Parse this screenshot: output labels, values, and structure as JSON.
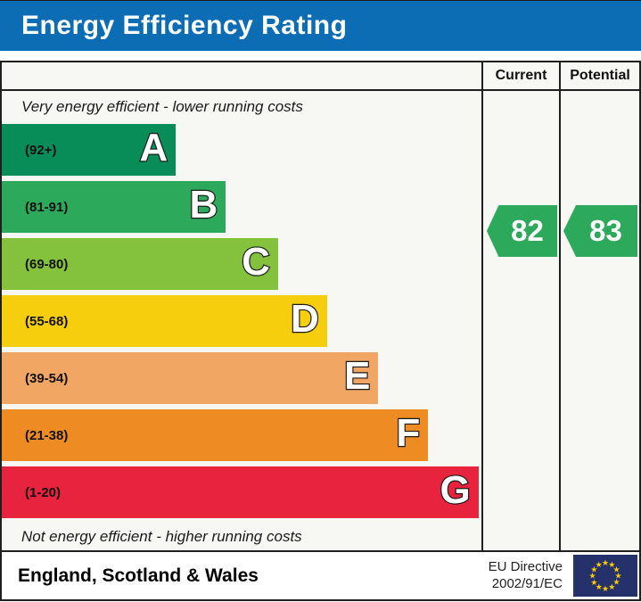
{
  "title": {
    "text": "Energy Efficiency Rating",
    "bg_color": "#0c6db5"
  },
  "table": {
    "columns": {
      "current": "Current",
      "potential": "Potential"
    },
    "top_note": "Very energy efficient - lower running costs",
    "bottom_note": "Not energy efficient - higher running costs",
    "bands": [
      {
        "letter": "A",
        "range": "(92+)",
        "color": "#088c58",
        "width_pct": 36.3
      },
      {
        "letter": "B",
        "range": "(81-91)",
        "color": "#2da95c",
        "width_pct": 46.7
      },
      {
        "letter": "C",
        "range": "(69-80)",
        "color": "#84c13d",
        "width_pct": 57.6
      },
      {
        "letter": "D",
        "range": "(55-68)",
        "color": "#f7ce0d",
        "width_pct": 67.8
      },
      {
        "letter": "E",
        "range": "(39-54)",
        "color": "#f1a664",
        "width_pct": 78.5
      },
      {
        "letter": "F",
        "range": "(21-38)",
        "color": "#ee8b23",
        "width_pct": 88.9
      },
      {
        "letter": "G",
        "range": "(1-20)",
        "color": "#e8233d",
        "width_pct": 99.4
      }
    ],
    "current": {
      "value": "82",
      "color": "#2da95c"
    },
    "potential": {
      "value": "83",
      "color": "#2da95c"
    }
  },
  "footer": {
    "region": "England, Scotland & Wales",
    "directive_line1": "EU Directive",
    "directive_line2": "2002/91/EC",
    "flag_color": "#25316b",
    "star_color": "#ffcc00"
  },
  "chart_data": {
    "type": "bar",
    "title": "Energy Efficiency Rating",
    "categories": [
      "A",
      "B",
      "C",
      "D",
      "E",
      "F",
      "G"
    ],
    "band_score_ranges": [
      "92+",
      "81-91",
      "69-80",
      "55-68",
      "39-54",
      "21-38",
      "1-20"
    ],
    "bar_lengths_pct": [
      36.3,
      46.7,
      57.6,
      67.8,
      78.5,
      88.9,
      99.4
    ],
    "band_colors": [
      "#088c58",
      "#2da95c",
      "#84c13d",
      "#f7ce0d",
      "#f1a664",
      "#ee8b23",
      "#e8233d"
    ],
    "series": [
      {
        "name": "Current",
        "values": [
          82
        ],
        "band": "B"
      },
      {
        "name": "Potential",
        "values": [
          83
        ],
        "band": "B"
      }
    ],
    "top_annotation": "Very energy efficient - lower running costs",
    "bottom_annotation": "Not energy efficient - higher running costs",
    "legend_position": "none",
    "footnote": "England, Scotland & Wales",
    "directive": "EU Directive 2002/91/EC"
  }
}
